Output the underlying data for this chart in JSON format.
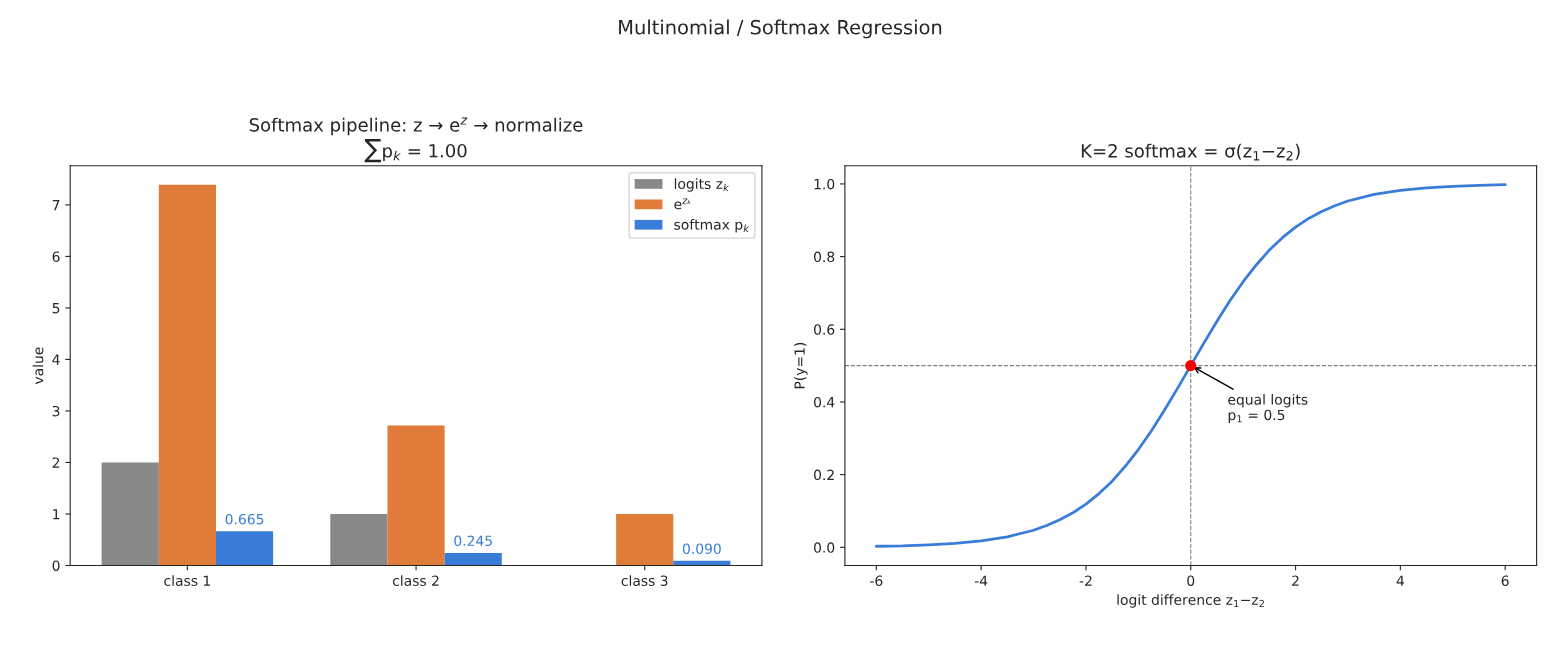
{
  "chart_data": [
    {
      "type": "bar",
      "title": "Softmax pipeline: z → e$^{z}$ → normalize\n∑p$_{k}$ = 1.00",
      "ylabel": "value",
      "annotations": [
        "Multinomial / Softmax Regression"
      ],
      "categories": [
        "class 1",
        "class 2",
        "class 3"
      ],
      "series": [
        {
          "name": "logits z$_{k}$",
          "color": "#888888",
          "values": [
            2,
            1,
            0
          ]
        },
        {
          "name": "e$^{zₖ}$",
          "color": "#e07b39",
          "values": [
            7.39,
            2.72,
            1.0
          ]
        },
        {
          "name": "softmax p$_{k}$",
          "color": "#3a7dd8",
          "values": [
            0.665,
            0.245,
            0.09
          ],
          "value_labels": [
            "0.665",
            "0.245",
            "0.090"
          ]
        }
      ],
      "ylim": [
        0,
        7.76
      ],
      "yticks": [
        0,
        1,
        2,
        3,
        4,
        5,
        6,
        7
      ],
      "legend": "top right",
      "grid": false
    },
    {
      "type": "line",
      "title": "K=2 softmax = σ(z$_{1}$−z$_{2}$)",
      "xlabel": "logit difference z$_{1}$−z$_{2}$",
      "ylabel": "P(y=1)",
      "series": [
        {
          "type": "line",
          "color": "#3a7dd8",
          "x": [
            -6,
            -5.5,
            -5,
            -4.5,
            -4,
            -3.5,
            -3,
            -2.75,
            -2.5,
            -2.25,
            -2,
            -1.75,
            -1.5,
            -1.25,
            -1,
            -0.75,
            -0.5,
            -0.25,
            0,
            0.25,
            0.5,
            0.75,
            1,
            1.25,
            1.5,
            1.75,
            2,
            2.25,
            2.5,
            2.75,
            3,
            3.5,
            4,
            4.5,
            5,
            5.5,
            6
          ],
          "values": [
            0.003,
            0.004,
            0.007,
            0.011,
            0.018,
            0.029,
            0.047,
            0.06,
            0.076,
            0.095,
            0.119,
            0.148,
            0.182,
            0.223,
            0.269,
            0.321,
            0.378,
            0.438,
            0.5,
            0.562,
            0.622,
            0.679,
            0.731,
            0.777,
            0.818,
            0.852,
            0.881,
            0.905,
            0.924,
            0.94,
            0.953,
            0.971,
            0.982,
            0.989,
            0.993,
            0.996,
            0.998
          ]
        },
        {
          "type": "scatter",
          "color": "#ff0000",
          "x": [
            0
          ],
          "values": [
            0.5
          ],
          "marker": "circle"
        }
      ],
      "ref_lines": [
        {
          "axis": "x",
          "value": 0,
          "color": "#808080",
          "line_style": "dashed"
        },
        {
          "axis": "y",
          "value": 0.5,
          "color": "#808080",
          "line_style": "dashed"
        }
      ],
      "annotations": [
        {
          "text": "equal logits\np$_{1}$ = 0.5",
          "x": 0,
          "y": 0.5
        }
      ],
      "xlim": [
        -6.6,
        6.6
      ],
      "ylim": [
        -0.05,
        1.05
      ],
      "xticks": [
        -6,
        -4,
        -2,
        0,
        2,
        4,
        6
      ],
      "yticks": [
        {
          "value": 0,
          "label": "0.0"
        },
        {
          "value": 0.2,
          "label": "0.2"
        },
        {
          "value": 0.4,
          "label": "0.4"
        },
        {
          "value": 0.6,
          "label": "0.6"
        },
        {
          "value": 0.8,
          "label": "0.8"
        },
        {
          "value": 1,
          "label": "1.0"
        }
      ],
      "grid": false
    }
  ]
}
